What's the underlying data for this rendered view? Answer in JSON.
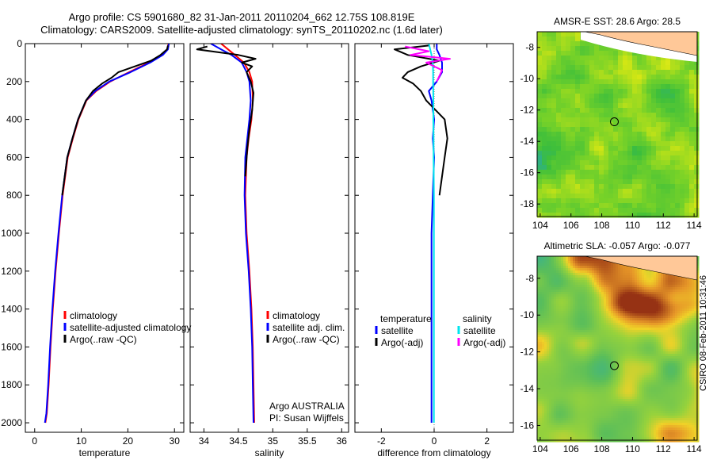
{
  "header": {
    "title_line1": "Argo profile: CS 5901680_82 31-Jan-2011 20110204_662 12.75S 108.819E",
    "title_line2": "Climatology: CARS2009. Satellite-adjusted climatology: synTS_20110202.nc (1.6d later)"
  },
  "side_text": "CSIRO 08-Feb-2011 10:31:46",
  "colors": {
    "climatology": "#ff0000",
    "satellite": "#0000ff",
    "argo": "#000000",
    "sal_satellite": "#00e5ee",
    "sal_argo": "#ff00ff",
    "land": "#ffc898"
  },
  "chart_data": [
    {
      "type": "line",
      "panel": "temperature",
      "xlabel": "temperature",
      "xlim": [
        -2,
        32
      ],
      "ylim": [
        2050,
        0
      ],
      "y_reversed": true,
      "xticks": [
        "0",
        "10",
        "20",
        "30"
      ],
      "yticks": [
        "0",
        "200",
        "400",
        "600",
        "800",
        "1000",
        "1200",
        "1400",
        "1600",
        "1800",
        "2000"
      ],
      "legend": [
        "climatology",
        "satellite-adjusted climatology",
        "Argo(..raw -QC)"
      ],
      "legend_placement": "lower-right",
      "series": [
        {
          "name": "climatology",
          "color": "#ff0000",
          "x": [
            28.7,
            28.5,
            27.3,
            24.5,
            20.3,
            16.2,
            13.2,
            11.1,
            9.4,
            8.2,
            7.1,
            6.0,
            5.2,
            4.5,
            3.9,
            3.4,
            3.0,
            2.6,
            2.3
          ],
          "y": [
            0,
            30,
            60,
            100,
            150,
            200,
            250,
            300,
            400,
            500,
            600,
            800,
            1000,
            1200,
            1400,
            1600,
            1800,
            1950,
            2000
          ]
        },
        {
          "name": "satellite-adjusted climatology",
          "color": "#0000ff",
          "x": [
            28.8,
            28.6,
            27.5,
            24.8,
            20.6,
            16.0,
            13.0,
            11.0,
            9.3,
            8.1,
            7.0,
            5.9,
            5.1,
            4.4,
            3.8,
            3.3,
            2.9,
            2.5,
            2.2
          ],
          "y": [
            0,
            30,
            60,
            100,
            150,
            200,
            250,
            300,
            400,
            500,
            600,
            800,
            1000,
            1200,
            1400,
            1600,
            1800,
            1950,
            2000
          ]
        },
        {
          "name": "Argo(..raw -QC)",
          "color": "#000000",
          "x": [
            28.6,
            28.4,
            27.0,
            25.0,
            21.5,
            18.0,
            16.5,
            14.5,
            12.5,
            11.0,
            9.3,
            8.1,
            7.0,
            5.9
          ],
          "y": [
            10,
            30,
            60,
            90,
            120,
            150,
            180,
            210,
            250,
            300,
            400,
            500,
            600,
            800
          ]
        }
      ]
    },
    {
      "type": "line",
      "panel": "salinity",
      "xlabel": "salinity",
      "xlim": [
        33.8,
        36.1
      ],
      "ylim": [
        2050,
        0
      ],
      "y_reversed": true,
      "xticks": [
        "34",
        "34.5",
        "35",
        "35.5",
        "36"
      ],
      "legend": [
        "climatology",
        "satellite adj. clim.",
        "Argo(..raw -QC)"
      ],
      "legend_placement": "lower-right",
      "annotations": [
        "Argo AUSTRALIA",
        "PI: Susan Wijffels"
      ],
      "series": [
        {
          "name": "climatology",
          "color": "#ff0000",
          "x": [
            34.25,
            34.35,
            34.45,
            34.58,
            34.66,
            34.7,
            34.71,
            34.69,
            34.65,
            34.62,
            34.6,
            34.62,
            34.66,
            34.69,
            34.71,
            34.72,
            34.73
          ],
          "y": [
            0,
            30,
            60,
            100,
            150,
            200,
            300,
            400,
            500,
            600,
            800,
            1000,
            1200,
            1400,
            1600,
            1800,
            2000
          ]
        },
        {
          "name": "satellite adj. clim.",
          "color": "#0000ff",
          "x": [
            34.1,
            34.25,
            34.4,
            34.55,
            34.62,
            34.66,
            34.68,
            34.66,
            34.63,
            34.6,
            34.59,
            34.61,
            34.65,
            34.68,
            34.7,
            34.71,
            34.72
          ],
          "y": [
            0,
            30,
            60,
            100,
            150,
            200,
            300,
            400,
            500,
            600,
            800,
            1000,
            1200,
            1400,
            1600,
            1800,
            2000
          ]
        },
        {
          "name": "Argo(..raw -QC)",
          "color": "#000000",
          "x": [
            34.05,
            33.9,
            34.2,
            34.5,
            34.75,
            34.55,
            34.7,
            34.62,
            34.68,
            34.72,
            34.7,
            34.66,
            34.63,
            34.6
          ],
          "y": [
            15,
            30,
            45,
            60,
            80,
            100,
            120,
            150,
            200,
            260,
            350,
            450,
            550,
            700
          ]
        }
      ]
    },
    {
      "type": "line",
      "panel": "difference",
      "xlabel": "difference from climatology",
      "xlim": [
        -3,
        3
      ],
      "ylim": [
        2050,
        0
      ],
      "y_reversed": true,
      "xticks": [
        "-2",
        "0",
        "2"
      ],
      "legend": [
        "temperature",
        "satellite",
        "Argo(-adj)",
        "salinity",
        "satellite",
        "Argo(-adj)"
      ],
      "legend_placement": "lower-center",
      "series": [
        {
          "name": "satellite",
          "group": "temperature",
          "color": "#0000ff",
          "x": [
            0.1,
            0.1,
            0.2,
            0.3,
            0.3,
            0.1,
            -0.2,
            -0.1,
            0.0,
            -0.05,
            0.0,
            -0.05,
            -0.1,
            -0.1,
            -0.1,
            -0.1,
            -0.1,
            -0.1,
            -0.1
          ],
          "y": [
            0,
            30,
            60,
            100,
            150,
            200,
            250,
            300,
            400,
            500,
            600,
            800,
            1000,
            1200,
            1400,
            1600,
            1800,
            1950,
            2000
          ]
        },
        {
          "name": "Argo(-adj)",
          "group": "temperature",
          "color": "#000000",
          "x": [
            -0.2,
            -1.5,
            -1.0,
            0.2,
            -0.5,
            -1.0,
            -1.2,
            -0.8,
            -0.5,
            -0.3,
            0.4,
            0.5,
            0.4,
            0.2
          ],
          "y": [
            10,
            30,
            60,
            90,
            120,
            150,
            180,
            210,
            250,
            300,
            400,
            500,
            600,
            800
          ]
        },
        {
          "name": "satellite",
          "group": "salinity",
          "color": "#00e5ee",
          "x": [
            -0.2,
            -0.15,
            -0.1,
            -0.05,
            -0.04,
            -0.04,
            -0.03,
            -0.03,
            -0.02,
            -0.02,
            -0.01,
            -0.01,
            -0.01,
            -0.01,
            -0.01,
            -0.01,
            -0.01
          ],
          "y": [
            0,
            30,
            60,
            100,
            150,
            200,
            300,
            400,
            500,
            600,
            800,
            1000,
            1200,
            1400,
            1600,
            1800,
            2000
          ]
        },
        {
          "name": "Argo(-adj)",
          "group": "salinity",
          "color": "#ff00ff",
          "x": [
            -1.1,
            -0.2,
            -0.9,
            0.6,
            -0.3,
            0.3,
            0.1
          ],
          "y": [
            15,
            40,
            60,
            80,
            100,
            140,
            200
          ]
        }
      ]
    },
    {
      "type": "heatmap",
      "panel": "sst-map",
      "title": "AMSR-E SST: 28.6  Argo: 28.5",
      "xlim": [
        103.8,
        114.2
      ],
      "ylim": [
        -18.8,
        -7.0
      ],
      "xticks": [
        "104",
        "106",
        "108",
        "110",
        "112",
        "114"
      ],
      "yticks": [
        "-8",
        "-10",
        "-12",
        "-14",
        "-16",
        "-18"
      ],
      "marker": {
        "lon": 108.819,
        "lat": -12.75
      }
    },
    {
      "type": "heatmap",
      "panel": "sla-map",
      "title": "Altimetric SLA: -0.057  Argo: -0.077",
      "xlim": [
        103.8,
        114.2
      ],
      "ylim": [
        -16.8,
        -6.8
      ],
      "xticks": [
        "104",
        "106",
        "108",
        "110",
        "112",
        "114"
      ],
      "yticks": [
        "-8",
        "-10",
        "-12",
        "-14",
        "-16"
      ],
      "marker": {
        "lon": 108.819,
        "lat": -12.75
      }
    }
  ]
}
